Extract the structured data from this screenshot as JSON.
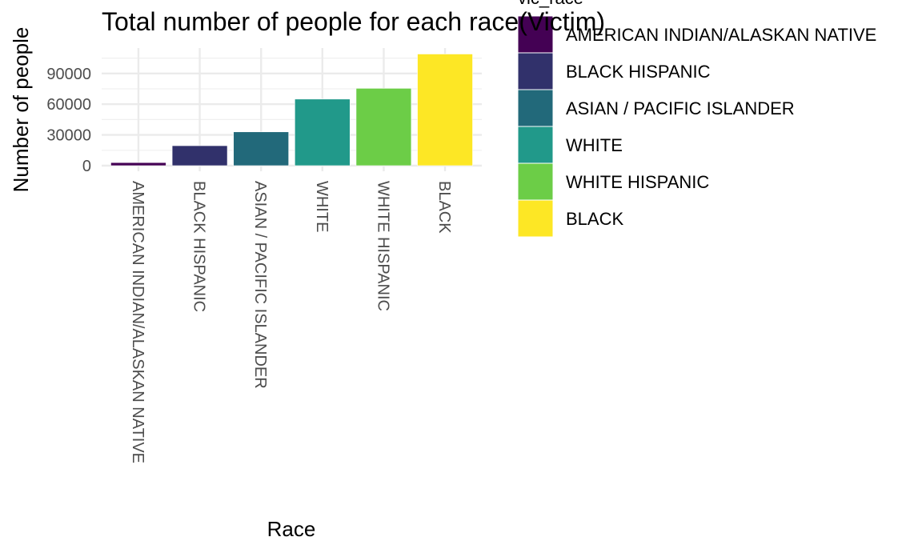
{
  "chart_data": {
    "type": "bar",
    "title": "Total number of people for each race(Victim)",
    "xlabel": "Race",
    "ylabel": "Number of people",
    "categories": [
      "AMERICAN INDIAN/ALASKAN NATIVE",
      "BLACK HISPANIC",
      "ASIAN / PACIFIC ISLANDER",
      "WHITE",
      "WHITE HISPANIC",
      "BLACK"
    ],
    "values": [
      3000,
      19500,
      33000,
      65000,
      75500,
      109000
    ],
    "colors": [
      "#440154",
      "#31316b",
      "#22697a",
      "#21998a",
      "#6ccd47",
      "#fde725"
    ],
    "yticks": [
      0,
      30000,
      60000,
      90000
    ],
    "ylim": [
      0,
      109000
    ],
    "grid": true,
    "x_tick_rotation": 90,
    "legend": {
      "title": "vic_race",
      "position": "right",
      "entries": [
        "AMERICAN INDIAN/ALASKAN NATIVE",
        "BLACK HISPANIC",
        "ASIAN / PACIFIC ISLANDER",
        "WHITE",
        "WHITE HISPANIC",
        "BLACK"
      ]
    }
  }
}
